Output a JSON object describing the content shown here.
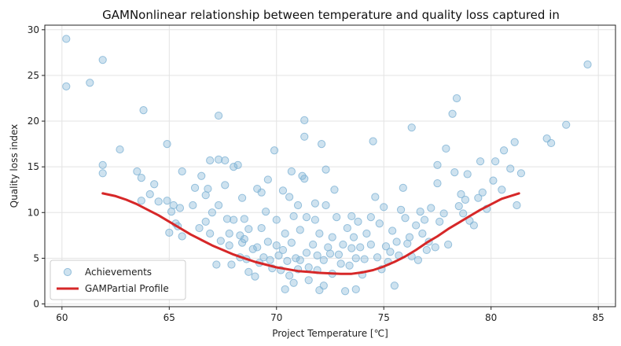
{
  "chart_data": {
    "type": "scatter",
    "title": "GAMNonlinear relationship between temperature and quality loss captured in",
    "xlabel": "Project Temperature [℃]",
    "ylabel": "Quality loss index",
    "xlim": [
      59.2,
      85.8
    ],
    "ylim": [
      -0.3,
      30.5
    ],
    "xticks": [
      60,
      65,
      70,
      75,
      80,
      85
    ],
    "yticks": [
      0,
      5,
      10,
      15,
      20,
      25,
      30
    ],
    "grid": true,
    "legend_position": "bottom-left",
    "colors": {
      "scatter": "#7fb3d5",
      "line": "#d62728"
    },
    "series": [
      {
        "name": "Achievements",
        "kind": "scatter",
        "points": [
          [
            60.2,
            29.0
          ],
          [
            60.2,
            23.8
          ],
          [
            61.3,
            24.2
          ],
          [
            61.9,
            26.7
          ],
          [
            61.9,
            15.2
          ],
          [
            61.9,
            14.3
          ],
          [
            62.7,
            16.9
          ],
          [
            63.5,
            14.5
          ],
          [
            63.7,
            13.8
          ],
          [
            63.8,
            21.2
          ],
          [
            63.7,
            11.3
          ],
          [
            64.1,
            12.0
          ],
          [
            64.5,
            11.2
          ],
          [
            64.3,
            13.1
          ],
          [
            64.9,
            17.5
          ],
          [
            64.9,
            11.3
          ],
          [
            65.1,
            10.1
          ],
          [
            65.3,
            8.8
          ],
          [
            65.2,
            10.8
          ],
          [
            65.5,
            10.5
          ],
          [
            65.6,
            14.5
          ],
          [
            65.0,
            7.8
          ],
          [
            65.4,
            8.5
          ],
          [
            65.6,
            7.4
          ],
          [
            66.2,
            12.7
          ],
          [
            66.1,
            10.8
          ],
          [
            66.4,
            8.3
          ],
          [
            66.5,
            14.0
          ],
          [
            66.7,
            11.9
          ],
          [
            66.7,
            9.0
          ],
          [
            66.8,
            12.6
          ],
          [
            66.9,
            15.7
          ],
          [
            66.9,
            7.7
          ],
          [
            67.0,
            10.0
          ],
          [
            67.3,
            20.6
          ],
          [
            67.3,
            15.8
          ],
          [
            67.3,
            10.8
          ],
          [
            67.4,
            6.9
          ],
          [
            67.2,
            4.3
          ],
          [
            67.6,
            15.7
          ],
          [
            67.6,
            13.0
          ],
          [
            67.7,
            9.3
          ],
          [
            67.8,
            7.7
          ],
          [
            67.8,
            6.4
          ],
          [
            67.9,
            4.3
          ],
          [
            68.0,
            15.0
          ],
          [
            68.0,
            9.2
          ],
          [
            68.2,
            15.2
          ],
          [
            68.3,
            7.5
          ],
          [
            68.3,
            5.1
          ],
          [
            68.4,
            11.6
          ],
          [
            68.4,
            6.7
          ],
          [
            68.5,
            9.3
          ],
          [
            68.5,
            7.1
          ],
          [
            68.6,
            4.9
          ],
          [
            68.7,
            8.2
          ],
          [
            68.9,
            6.0
          ],
          [
            68.7,
            3.5
          ],
          [
            69.0,
            3.0
          ],
          [
            69.1,
            12.6
          ],
          [
            69.1,
            6.2
          ],
          [
            69.2,
            4.5
          ],
          [
            69.3,
            12.2
          ],
          [
            69.3,
            8.3
          ],
          [
            69.4,
            5.1
          ],
          [
            69.5,
            10.1
          ],
          [
            69.6,
            13.6
          ],
          [
            69.6,
            6.8
          ],
          [
            69.7,
            4.8
          ],
          [
            69.8,
            3.9
          ],
          [
            69.9,
            16.8
          ],
          [
            70.0,
            9.2
          ],
          [
            70.0,
            6.4
          ],
          [
            70.1,
            5.3
          ],
          [
            70.2,
            3.7
          ],
          [
            70.3,
            12.4
          ],
          [
            70.3,
            5.9
          ],
          [
            70.4,
            7.7
          ],
          [
            70.4,
            1.6
          ],
          [
            70.5,
            4.7
          ],
          [
            70.6,
            11.7
          ],
          [
            70.6,
            3.1
          ],
          [
            70.7,
            14.5
          ],
          [
            70.7,
            6.7
          ],
          [
            70.8,
            9.6
          ],
          [
            70.8,
            2.3
          ],
          [
            70.9,
            5.0
          ],
          [
            71.0,
            10.8
          ],
          [
            71.0,
            3.8
          ],
          [
            71.1,
            8.1
          ],
          [
            71.1,
            4.8
          ],
          [
            71.2,
            14.0
          ],
          [
            71.3,
            20.1
          ],
          [
            71.3,
            18.3
          ],
          [
            71.3,
            13.7
          ],
          [
            71.4,
            9.5
          ],
          [
            71.4,
            5.6
          ],
          [
            71.5,
            4.0
          ],
          [
            71.5,
            2.6
          ],
          [
            71.7,
            6.5
          ],
          [
            71.8,
            11.0
          ],
          [
            71.8,
            9.2
          ],
          [
            71.9,
            5.3
          ],
          [
            71.9,
            3.7
          ],
          [
            72.0,
            1.5
          ],
          [
            72.0,
            7.7
          ],
          [
            72.1,
            17.5
          ],
          [
            72.2,
            4.8
          ],
          [
            72.2,
            2.0
          ],
          [
            72.3,
            14.7
          ],
          [
            72.3,
            10.8
          ],
          [
            72.4,
            6.2
          ],
          [
            72.5,
            5.5
          ],
          [
            72.6,
            3.3
          ],
          [
            72.6,
            7.3
          ],
          [
            72.7,
            12.5
          ],
          [
            72.8,
            9.5
          ],
          [
            72.9,
            5.4
          ],
          [
            73.0,
            4.4
          ],
          [
            73.1,
            6.5
          ],
          [
            73.2,
            1.4
          ],
          [
            73.3,
            8.3
          ],
          [
            73.4,
            4.2
          ],
          [
            73.5,
            9.6
          ],
          [
            73.5,
            6.1
          ],
          [
            73.7,
            1.6
          ],
          [
            73.6,
            7.3
          ],
          [
            73.7,
            5.0
          ],
          [
            73.8,
            9.0
          ],
          [
            73.9,
            6.2
          ],
          [
            74.0,
            3.2
          ],
          [
            74.1,
            4.9
          ],
          [
            74.2,
            7.7
          ],
          [
            74.4,
            9.5
          ],
          [
            74.5,
            17.8
          ],
          [
            74.4,
            6.5
          ],
          [
            74.6,
            11.7
          ],
          [
            74.7,
            5.1
          ],
          [
            74.8,
            8.8
          ],
          [
            74.9,
            3.8
          ],
          [
            75.0,
            10.6
          ],
          [
            75.1,
            6.3
          ],
          [
            75.2,
            4.6
          ],
          [
            75.3,
            5.7
          ],
          [
            75.4,
            8.0
          ],
          [
            75.5,
            2.0
          ],
          [
            75.6,
            6.8
          ],
          [
            75.7,
            5.3
          ],
          [
            75.8,
            10.3
          ],
          [
            75.9,
            12.7
          ],
          [
            76.0,
            9.4
          ],
          [
            76.1,
            6.6
          ],
          [
            76.2,
            7.3
          ],
          [
            76.3,
            19.3
          ],
          [
            76.3,
            5.2
          ],
          [
            76.5,
            8.6
          ],
          [
            76.6,
            4.8
          ],
          [
            76.7,
            10.1
          ],
          [
            76.8,
            7.7
          ],
          [
            76.9,
            9.2
          ],
          [
            77.0,
            5.9
          ],
          [
            77.1,
            6.8
          ],
          [
            77.2,
            10.5
          ],
          [
            77.4,
            6.2
          ],
          [
            77.5,
            13.2
          ],
          [
            77.5,
            15.2
          ],
          [
            77.6,
            9.0
          ],
          [
            77.8,
            9.9
          ],
          [
            77.9,
            17.0
          ],
          [
            78.0,
            6.5
          ],
          [
            78.2,
            20.8
          ],
          [
            78.3,
            14.4
          ],
          [
            78.4,
            22.5
          ],
          [
            78.5,
            10.7
          ],
          [
            78.6,
            12.0
          ],
          [
            78.7,
            9.9
          ],
          [
            78.8,
            11.4
          ],
          [
            78.9,
            14.2
          ],
          [
            79.0,
            9.1
          ],
          [
            79.2,
            8.6
          ],
          [
            79.4,
            11.6
          ],
          [
            79.5,
            15.6
          ],
          [
            79.6,
            12.2
          ],
          [
            79.8,
            10.4
          ],
          [
            80.1,
            13.5
          ],
          [
            80.2,
            15.6
          ],
          [
            80.5,
            12.5
          ],
          [
            80.6,
            16.8
          ],
          [
            80.9,
            14.8
          ],
          [
            81.1,
            17.7
          ],
          [
            81.2,
            10.8
          ],
          [
            81.4,
            14.3
          ],
          [
            82.6,
            18.1
          ],
          [
            82.8,
            17.6
          ],
          [
            83.5,
            19.6
          ],
          [
            84.5,
            26.2
          ]
        ]
      },
      {
        "name": "GAMPartial Profile",
        "kind": "line",
        "points": [
          [
            61.9,
            12.1
          ],
          [
            62.5,
            11.8
          ],
          [
            63.0,
            11.4
          ],
          [
            63.5,
            10.9
          ],
          [
            64.0,
            10.3
          ],
          [
            64.5,
            9.7
          ],
          [
            65.0,
            9.0
          ],
          [
            65.5,
            8.3
          ],
          [
            66.0,
            7.6
          ],
          [
            66.5,
            7.0
          ],
          [
            67.0,
            6.4
          ],
          [
            67.5,
            5.9
          ],
          [
            68.0,
            5.4
          ],
          [
            68.5,
            5.0
          ],
          [
            69.0,
            4.6
          ],
          [
            69.5,
            4.3
          ],
          [
            70.0,
            4.0
          ],
          [
            70.5,
            3.8
          ],
          [
            71.0,
            3.6
          ],
          [
            71.5,
            3.5
          ],
          [
            72.0,
            3.4
          ],
          [
            72.5,
            3.35
          ],
          [
            73.0,
            3.3
          ],
          [
            73.5,
            3.3
          ],
          [
            74.0,
            3.45
          ],
          [
            74.5,
            3.7
          ],
          [
            75.0,
            4.1
          ],
          [
            75.5,
            4.6
          ],
          [
            76.0,
            5.2
          ],
          [
            76.5,
            5.9
          ],
          [
            77.0,
            6.7
          ],
          [
            77.5,
            7.4
          ],
          [
            78.0,
            8.2
          ],
          [
            78.5,
            8.9
          ],
          [
            79.0,
            9.6
          ],
          [
            79.5,
            10.3
          ],
          [
            80.0,
            10.9
          ],
          [
            80.5,
            11.5
          ],
          [
            81.3,
            12.1
          ]
        ]
      }
    ]
  }
}
